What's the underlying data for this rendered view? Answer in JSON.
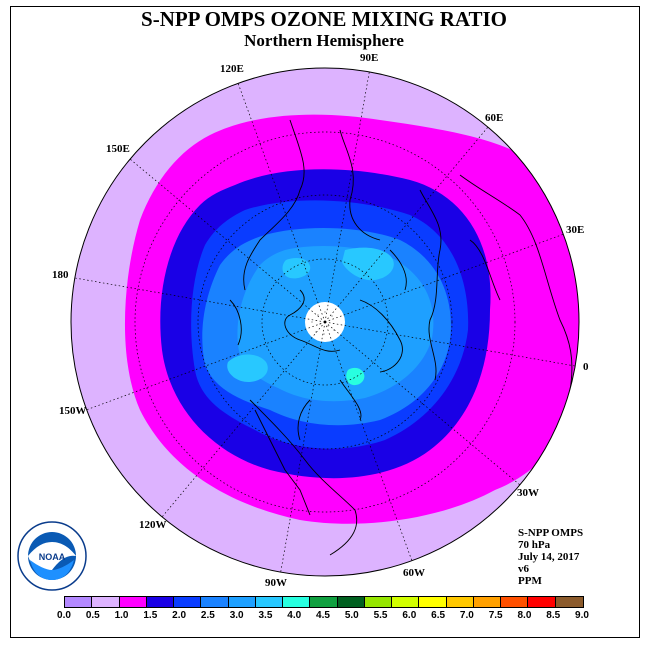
{
  "title": "S-NPP OMPS OZONE MIXING RATIO",
  "subtitle": "Northern Hemisphere",
  "info": {
    "instrument": "S-NPP OMPS",
    "pressure": "70 hPa",
    "date": "July 14, 2017",
    "version": "v6",
    "units": "PPM"
  },
  "logo_text": "NOAA",
  "longitude_labels": [
    {
      "text": "90E",
      "lon": 90
    },
    {
      "text": "60E",
      "lon": 60
    },
    {
      "text": "30E",
      "lon": 30
    },
    {
      "text": "0",
      "lon": 0
    },
    {
      "text": "30W",
      "lon": -30
    },
    {
      "text": "60W",
      "lon": -60
    },
    {
      "text": "90W",
      "lon": -90
    },
    {
      "text": "120W",
      "lon": -120
    },
    {
      "text": "150W",
      "lon": -150
    },
    {
      "text": "180",
      "lon": 180
    },
    {
      "text": "150E",
      "lon": 150
    },
    {
      "text": "120E",
      "lon": 120
    }
  ],
  "colorbar": {
    "ticks": [
      "0.0",
      "0.5",
      "1.0",
      "1.5",
      "2.0",
      "2.5",
      "3.0",
      "3.5",
      "4.0",
      "4.5",
      "5.0",
      "5.5",
      "6.0",
      "6.5",
      "7.0",
      "7.5",
      "8.0",
      "8.5",
      "9.0"
    ],
    "colors": [
      "#b388ff",
      "#ddb3ff",
      "#ff00ff",
      "#1a00e6",
      "#0a3cff",
      "#1a82ff",
      "#1ea0ff",
      "#28c8ff",
      "#28ffe0",
      "#10a040",
      "#006020",
      "#96e600",
      "#d2ff00",
      "#ffff00",
      "#ffc800",
      "#ffa000",
      "#ff5000",
      "#ff0000",
      "#8b5a2b"
    ]
  },
  "colors": {
    "band_0_5": "#ddb3ff",
    "band_1_0": "#ff00ff",
    "band_1_5": "#1a00e6",
    "band_2_0": "#0a3cff",
    "band_2_5": "#1a82ff",
    "band_3_0": "#1ea0ff",
    "band_3_5": "#28c8ff",
    "band_4_0": "#28ffe0",
    "polar_night": "#ffffff"
  }
}
